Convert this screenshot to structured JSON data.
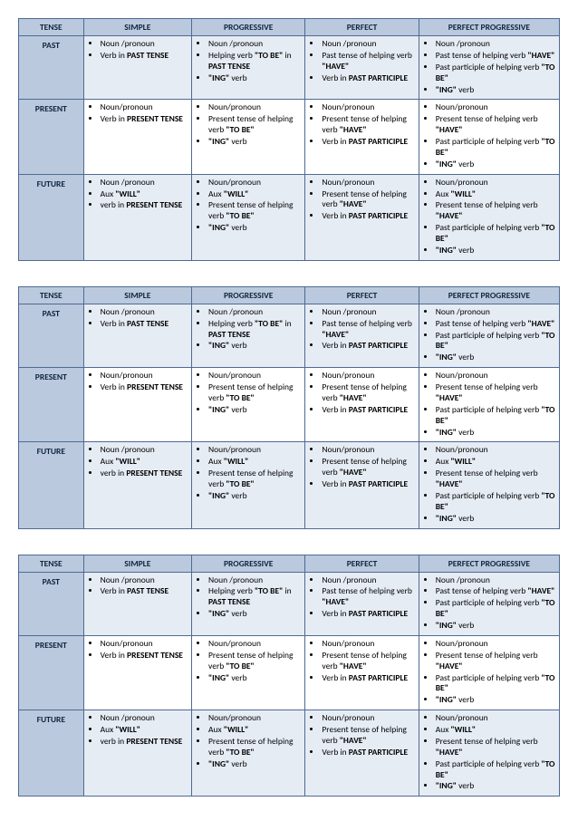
{
  "headers": [
    "TENSE",
    "SIMPLE",
    "PROGRESSIVE",
    "PERFECT",
    "PERFECT PROGRESSIVE"
  ],
  "rows": [
    {
      "label": "PAST",
      "simple": [
        "Noun /pronoun",
        "Verb in <b>PAST TENSE</b>"
      ],
      "progressive": [
        "Noun /pronoun",
        "Helping verb <b>\"TO BE\"</b> in <b>PAST TENSE</b>",
        "<b>\"ING\"</b> verb"
      ],
      "perfect": [
        "Noun /pronoun",
        "Past tense of helping verb <b>\"HAVE\"</b>",
        "Verb in <b>PAST PARTICIPLE</b>"
      ],
      "perfprog": [
        "Noun /pronoun",
        "Past tense of helping verb <b>\"HAVE\"</b>",
        "Past participle of helping verb <b>\"TO BE\"</b>",
        "<b>\"ING\"</b> verb"
      ]
    },
    {
      "label": "PRESENT",
      "simple": [
        "Noun/pronoun",
        "Verb in <b>PRESENT TENSE</b>"
      ],
      "progressive": [
        "Noun/pronoun",
        "Present tense of helping verb <b>\"TO BE\"</b>",
        "<b>\"ING\"</b> verb"
      ],
      "perfect": [
        "Noun/pronoun",
        "Present tense of helping verb <b>\"HAVE\"</b>",
        "Verb in <b>PAST PARTICIPLE</b>"
      ],
      "perfprog": [
        "Noun/pronoun",
        "Present tense of helping verb <b>\"HAVE\"</b>",
        "Past participle of helping verb <b>\"TO BE\"</b>",
        "<b>\"ING\"</b> verb"
      ]
    },
    {
      "label": "FUTURE",
      "simple": [
        "Noun /pronoun",
        "Aux <b>\"WILL\"</b>",
        "verb in <b>PRESENT TENSE</b>"
      ],
      "progressive": [
        "Noun/pronoun",
        "Aux <b>\"WILL\"</b>",
        "Present tense of helping verb <b>\"TO BE\"</b>",
        "<b>\"ING\"</b> verb"
      ],
      "perfect": [
        "Noun/pronoun",
        "Present tense of helping verb <b>\"HAVE\"</b>",
        "Verb in <b>PAST PARTICIPLE</b>"
      ],
      "perfprog": [
        "Noun/pronoun",
        "Aux <b>\"WILL\"</b>",
        "Present tense of helping verb <b>\"HAVE\"</b>",
        "Past participle of helping verb <b>\"TO BE\"</b>",
        "<b>\"ING\"</b> verb"
      ]
    }
  ],
  "copies": 3,
  "colors": {
    "header_bg": "#bac9dd",
    "border": "#4f6a93",
    "alt_row": "#e6ecf4",
    "plain_row": "#ffffff"
  }
}
